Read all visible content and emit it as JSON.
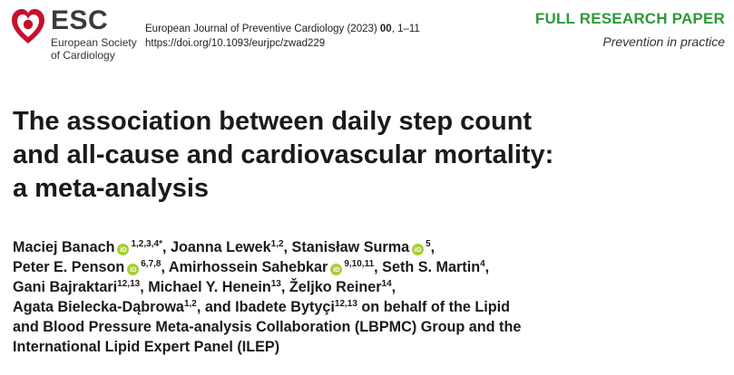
{
  "header": {
    "logo": {
      "name": "ESC",
      "subtitle_line1": "European Society",
      "subtitle_line2": "of Cardiology",
      "mark_color": "#c8102e"
    },
    "journal": {
      "citation_prefix": "European Journal of Preventive Cardiology (2023) ",
      "volume": "00",
      "pages": ", 1–11",
      "doi": "https://doi.org/10.1093/eurjpc/zwad229"
    },
    "article_type": {
      "label": "FULL RESEARCH PAPER",
      "section": "Prevention in practice",
      "color": "#2e9a3a"
    }
  },
  "title_lines": [
    "The association between daily step count",
    "and all-cause and cardiovascular mortality:",
    "a meta-analysis"
  ],
  "orcid_icon_text": "iD",
  "authors": {
    "a1_name": "Maciej Banach",
    "a1_aff": "1,2,3,4",
    "a1_mark": "*",
    "a2_name": "Joanna Lewek",
    "a2_aff": "1,2",
    "a3_name": "Stanisław Surma",
    "a3_aff": "5",
    "a4_name": "Peter E. Penson",
    "a4_aff": "6,7,8",
    "a5_name": "Amirhossein Sahebkar",
    "a5_aff": "9,10,11",
    "a6_name": "Seth S. Martin",
    "a6_aff": "4",
    "a7_name": "Gani Bajraktari",
    "a7_aff": "12,13",
    "a8_name": "Michael Y. Henein",
    "a8_aff": "13",
    "a9_name": "Željko Reiner",
    "a9_aff": "14",
    "a10_name": "Agata Bielecka-Dąbrowa",
    "a10_aff": "1,2",
    "a11_name": "Ibadete Bytyçi",
    "a11_aff": "12,13",
    "sep": ", ",
    "and": ", and ",
    "behalf_line1": " on behalf of the Lipid",
    "behalf_line2": "and Blood Pressure Meta-analysis Collaboration (LBPMC) Group and the",
    "behalf_line3": "International Lipid Expert Panel (ILEP)"
  }
}
